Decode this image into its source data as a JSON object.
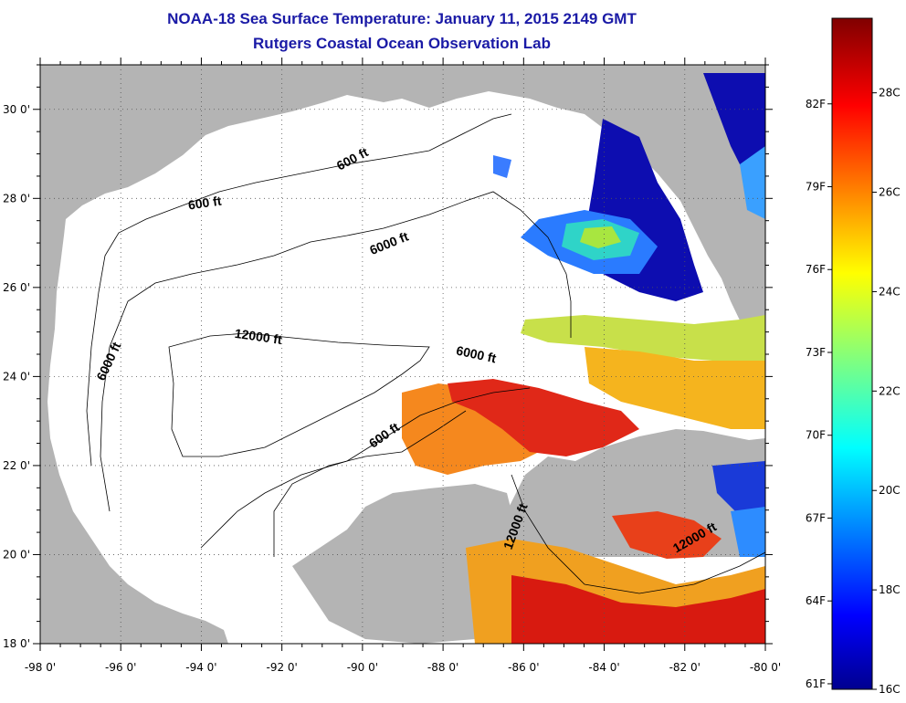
{
  "title": "NOAA-18 Sea Surface Temperature:  January 11, 2015 2149 GMT",
  "subtitle": "Rutgers Coastal Ocean Observation Lab",
  "map": {
    "lon_range": [
      -98,
      -80
    ],
    "lat_range": [
      18,
      31
    ],
    "x_ticks": [
      "-98 0'",
      "-96 0'",
      "-94 0'",
      "-92 0'",
      "-90 0'",
      "-88 0'",
      "-86 0'",
      "-84 0'",
      "-82 0'",
      "-80 0'"
    ],
    "y_ticks": [
      "18 0'",
      "20 0'",
      "22 0'",
      "24 0'",
      "26 0'",
      "28 0'",
      "30 0'"
    ],
    "grid": "dotted",
    "land_color": "#b4b4b4",
    "nodata_color": "#ffffff",
    "contour_labels": [
      {
        "text": "600 ft",
        "lon": -90.2,
        "lat": 28.8,
        "angle": -28
      },
      {
        "text": "600 ft",
        "lon": -93.9,
        "lat": 27.8,
        "angle": -8
      },
      {
        "text": "6000 ft",
        "lon": -89.3,
        "lat": 26.9,
        "angle": -22
      },
      {
        "text": "6000 ft",
        "lon": -96.2,
        "lat": 24.3,
        "angle": -65
      },
      {
        "text": "12000 ft",
        "lon": -92.6,
        "lat": 24.8,
        "angle": 8
      },
      {
        "text": "6000 ft",
        "lon": -87.2,
        "lat": 24.4,
        "angle": 12
      },
      {
        "text": "600 ft",
        "lon": -89.4,
        "lat": 22.6,
        "angle": -35
      },
      {
        "text": "12000 ft",
        "lon": -86.1,
        "lat": 20.6,
        "angle": -70
      },
      {
        "text": "12000 ft",
        "lon": -81.7,
        "lat": 20.3,
        "angle": -30
      }
    ]
  },
  "colorbar": {
    "celsius_labels": [
      "28C",
      "26C",
      "24C",
      "22C",
      "20C",
      "18C",
      "16C"
    ],
    "celsius_values": [
      28,
      26,
      24,
      22,
      20,
      18,
      16
    ],
    "fahrenheit_labels": [
      "82F",
      "79F",
      "76F",
      "73F",
      "70F",
      "67F",
      "64F",
      "61F"
    ],
    "fahrenheit_values": [
      82,
      79,
      76,
      73,
      70,
      67,
      64,
      61
    ],
    "range_c": [
      16,
      29.5
    ],
    "colormap": "jet"
  }
}
